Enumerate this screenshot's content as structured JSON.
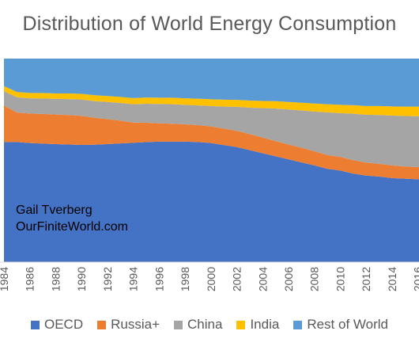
{
  "chart_data": {
    "type": "area",
    "stacked": true,
    "normalized": true,
    "title": "Distribution of World Energy Consumption",
    "xlabel": "",
    "ylabel": "",
    "x": [
      1984,
      1985,
      1986,
      1987,
      1988,
      1989,
      1990,
      1991,
      1992,
      1993,
      1994,
      1995,
      1996,
      1997,
      1998,
      1999,
      2000,
      2001,
      2002,
      2003,
      2004,
      2005,
      2006,
      2007,
      2008,
      2009,
      2010,
      2011,
      2012,
      2013,
      2014,
      2015,
      2016,
      2017
    ],
    "x_tick_labels": [
      "1984",
      "1986",
      "1988",
      "1990",
      "1992",
      "1994",
      "1996",
      "1998",
      "2000",
      "2002",
      "2004",
      "2006",
      "2008",
      "2010",
      "2012",
      "2014",
      "2016"
    ],
    "ylim": [
      0,
      1
    ],
    "series": [
      {
        "name": "OECD",
        "color": "#4472C4",
        "values": [
          0.59,
          0.59,
          0.585,
          0.582,
          0.58,
          0.578,
          0.576,
          0.577,
          0.58,
          0.583,
          0.586,
          0.59,
          0.592,
          0.592,
          0.592,
          0.59,
          0.585,
          0.575,
          0.565,
          0.55,
          0.535,
          0.52,
          0.505,
          0.49,
          0.475,
          0.458,
          0.45,
          0.435,
          0.425,
          0.42,
          0.413,
          0.41,
          0.407,
          0.4
        ]
      },
      {
        "name": "Russia+",
        "color": "#ED7D31",
        "values": [
          0.18,
          0.145,
          0.145,
          0.146,
          0.145,
          0.145,
          0.143,
          0.132,
          0.123,
          0.112,
          0.1,
          0.095,
          0.09,
          0.088,
          0.085,
          0.083,
          0.082,
          0.081,
          0.08,
          0.079,
          0.077,
          0.075,
          0.073,
          0.072,
          0.07,
          0.068,
          0.067,
          0.066,
          0.064,
          0.063,
          0.062,
          0.06,
          0.06,
          0.058
        ]
      },
      {
        "name": "China",
        "color": "#A5A5A5",
        "values": [
          0.07,
          0.075,
          0.075,
          0.076,
          0.077,
          0.078,
          0.08,
          0.082,
          0.084,
          0.087,
          0.09,
          0.093,
          0.095,
          0.096,
          0.096,
          0.097,
          0.1,
          0.108,
          0.118,
          0.13,
          0.145,
          0.16,
          0.172,
          0.183,
          0.195,
          0.21,
          0.215,
          0.228,
          0.235,
          0.24,
          0.245,
          0.248,
          0.25,
          0.258
        ]
      },
      {
        "name": "India",
        "color": "#FFC000",
        "values": [
          0.025,
          0.026,
          0.026,
          0.027,
          0.027,
          0.028,
          0.028,
          0.029,
          0.029,
          0.03,
          0.03,
          0.031,
          0.031,
          0.032,
          0.032,
          0.033,
          0.033,
          0.034,
          0.034,
          0.035,
          0.035,
          0.036,
          0.037,
          0.038,
          0.039,
          0.04,
          0.041,
          0.042,
          0.043,
          0.044,
          0.045,
          0.046,
          0.047,
          0.048
        ]
      },
      {
        "name": "Rest of World",
        "color": "#5B9BD5",
        "values": [
          0.135,
          0.164,
          0.169,
          0.169,
          0.171,
          0.171,
          0.173,
          0.18,
          0.184,
          0.188,
          0.194,
          0.191,
          0.192,
          0.192,
          0.195,
          0.197,
          0.2,
          0.202,
          0.203,
          0.206,
          0.208,
          0.209,
          0.213,
          0.217,
          0.221,
          0.224,
          0.227,
          0.229,
          0.233,
          0.233,
          0.235,
          0.236,
          0.236,
          0.236
        ]
      }
    ],
    "legend_position": "bottom",
    "grid": false,
    "annotation": [
      "Gail Tverberg",
      "OurFiniteWorld.com"
    ]
  }
}
